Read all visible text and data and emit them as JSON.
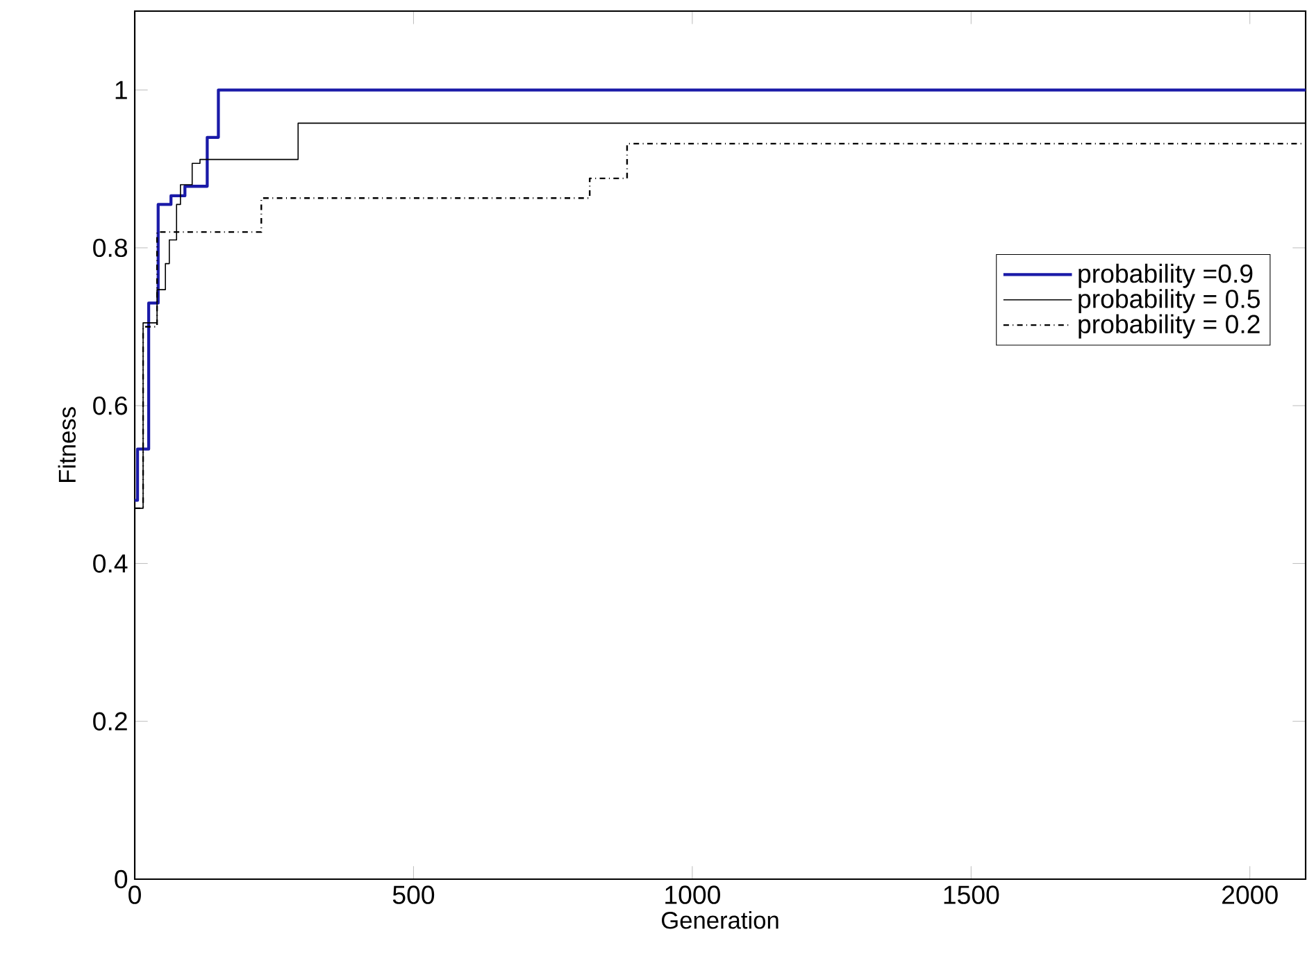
{
  "chart_data": {
    "type": "step",
    "xlabel": "Generation",
    "ylabel": "Fitness",
    "xlim": [
      0,
      2100
    ],
    "ylim": [
      0,
      1.1
    ],
    "xticks": [
      0,
      500,
      1000,
      1500,
      2000
    ],
    "yticks": [
      0,
      0.2,
      0.4,
      0.6,
      0.8,
      1
    ],
    "grid": false,
    "legend": "right",
    "marker": "none",
    "series": [
      {
        "name": "probability =0.9",
        "color": "#1a1aa8",
        "line_style": "solid",
        "x": [
          0,
          5,
          25,
          42,
          65,
          90,
          130,
          150,
          2100
        ],
        "values": [
          0.48,
          0.545,
          0.73,
          0.855,
          0.866,
          0.878,
          0.94,
          1.0,
          1.0
        ]
      },
      {
        "name": "probability = 0.5",
        "color": "#000000",
        "line_style": "solid",
        "x": [
          0,
          15,
          40,
          55,
          62,
          75,
          82,
          103,
          117,
          293,
          2100
        ],
        "values": [
          0.47,
          0.705,
          0.747,
          0.78,
          0.81,
          0.855,
          0.88,
          0.907,
          0.912,
          0.958,
          0.958
        ]
      },
      {
        "name": "probability = 0.2",
        "color": "#000000",
        "line_style": "dashdot",
        "x": [
          0,
          15,
          40,
          227,
          816,
          883,
          2100
        ],
        "values": [
          0.47,
          0.7,
          0.82,
          0.863,
          0.888,
          0.932,
          0.932
        ]
      }
    ]
  }
}
